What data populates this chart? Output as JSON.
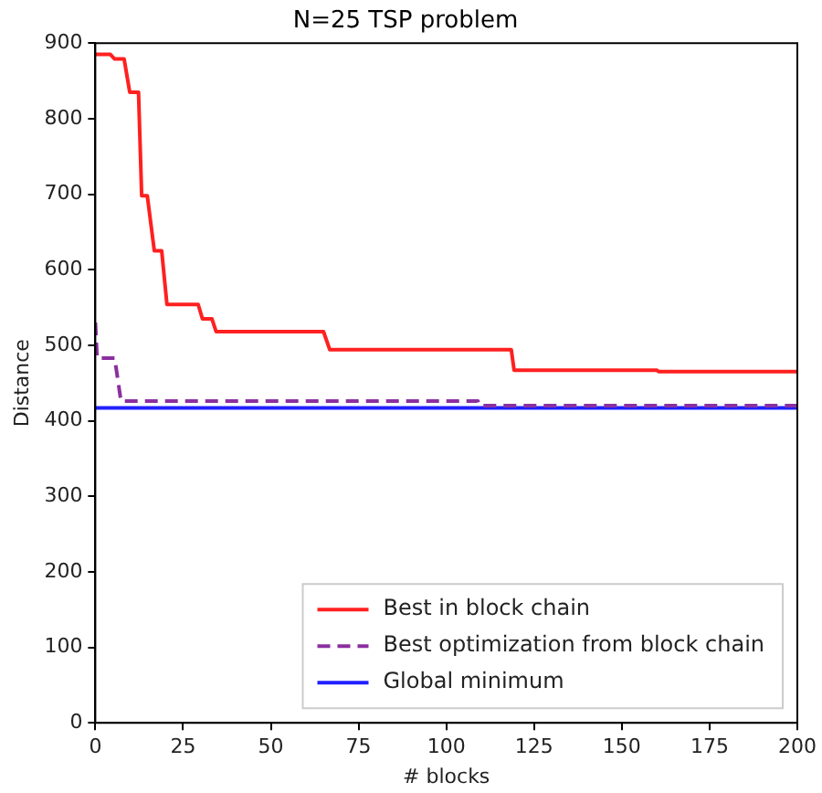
{
  "chart_data": {
    "type": "line",
    "title": "N=25 TSP problem",
    "xlabel": "# blocks",
    "ylabel": "Distance",
    "xlim": [
      0,
      200
    ],
    "xticks": [
      0,
      25,
      50,
      75,
      100,
      125,
      150,
      175,
      200
    ],
    "ylim": [
      0,
      900
    ],
    "yticks": [
      0,
      100,
      200,
      300,
      400,
      500,
      600,
      700,
      800,
      900
    ],
    "grid": false,
    "legend": "bottom right",
    "marker": "none",
    "series": [
      {
        "name": "Best in block chain",
        "color": "#ff2020",
        "line_style": "solid",
        "x": [
          0,
          4.3,
          5.5,
          8.2,
          9.8,
          12.3,
          13.2,
          14.8,
          16.8,
          18.9,
          20.4,
          29.3,
          30.5,
          33.2,
          34.4,
          65,
          66.8,
          118.5,
          119.3,
          160,
          160.5,
          200
        ],
        "values": [
          885,
          885,
          879,
          879,
          835,
          835,
          698,
          698,
          625,
          625,
          554,
          554,
          535,
          535,
          518,
          518,
          494,
          494,
          467,
          467,
          465,
          465
        ]
      },
      {
        "name": "Best optimization from block chain",
        "color": "#8b2fa0",
        "line_style": "dashed",
        "x": [
          0,
          0.5,
          5.5,
          7.3,
          109,
          109.5,
          200
        ],
        "values": [
          530,
          483,
          483,
          426,
          426,
          420,
          420
        ]
      },
      {
        "name": "Global minimum",
        "color": "#2020ff",
        "line_style": "solid",
        "x": [
          0,
          200
        ],
        "values": [
          417,
          417
        ]
      }
    ]
  }
}
